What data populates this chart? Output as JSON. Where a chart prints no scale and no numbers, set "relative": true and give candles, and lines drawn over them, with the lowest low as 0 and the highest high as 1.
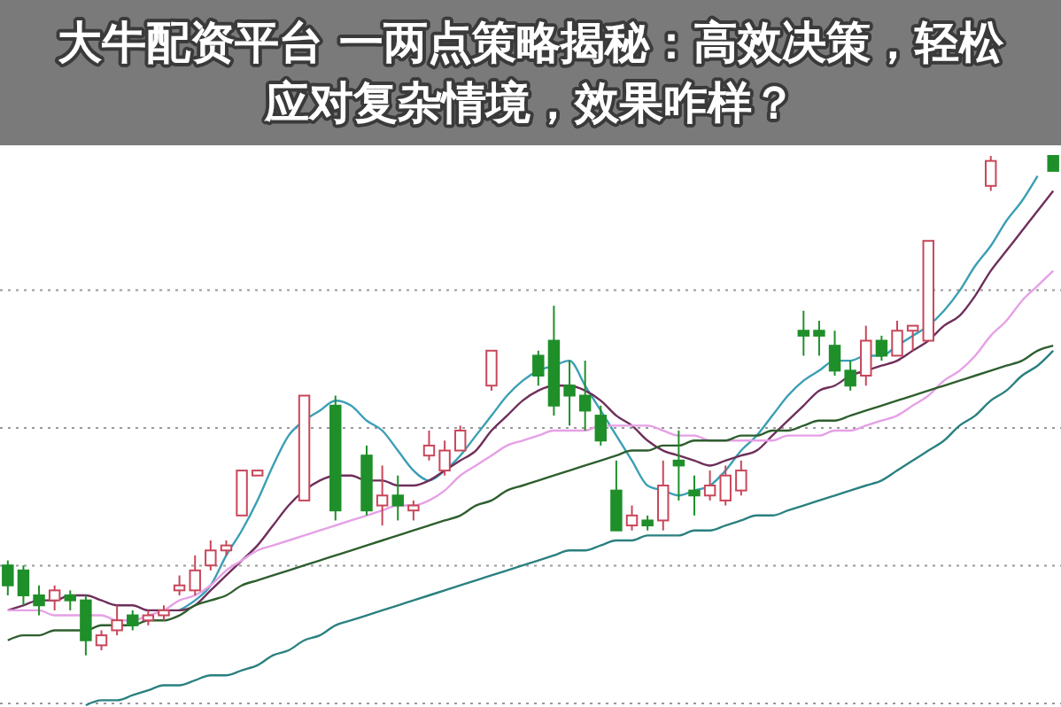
{
  "chart_data": {
    "type": "candlestick",
    "relative": true,
    "grid": true,
    "title": "大牛配资平台 一两点策略揭秘：高效决策，轻松应对复杂情境，效果咋样？",
    "categories": [
      null,
      null,
      null,
      null,
      null,
      null,
      null,
      null,
      null,
      null,
      null,
      null,
      null,
      null,
      null,
      null,
      null,
      null,
      null,
      null,
      null,
      null,
      null,
      null,
      null,
      null,
      null,
      null,
      null,
      null,
      null,
      null,
      null,
      null,
      null,
      null,
      null,
      null,
      null,
      null,
      null,
      null,
      null,
      null,
      null,
      null,
      null,
      null,
      null,
      null,
      null,
      null,
      null,
      null,
      null,
      null,
      null,
      null,
      null,
      null,
      null,
      null,
      null,
      null,
      null,
      null,
      null,
      null
    ],
    "ohlc": [
      [
        0.18,
        0.19,
        0.12,
        0.14
      ],
      [
        0.17,
        0.18,
        0.1,
        0.12
      ],
      [
        0.12,
        0.14,
        0.08,
        0.1
      ],
      [
        0.11,
        0.14,
        0.09,
        0.13
      ],
      [
        0.12,
        0.13,
        0.09,
        0.11
      ],
      [
        0.11,
        0.12,
        0,
        0.03
      ],
      [
        0.02,
        0.05,
        0.01,
        0.04
      ],
      [
        0.05,
        0.1,
        0.04,
        0.07
      ],
      [
        0.08,
        0.09,
        0.05,
        0.06
      ],
      [
        0.07,
        0.09,
        0.06,
        0.08
      ],
      [
        0.08,
        0.1,
        0.07,
        0.09
      ],
      [
        0.13,
        0.16,
        0.12,
        0.14
      ],
      [
        0.13,
        0.2,
        0.12,
        0.17
      ],
      [
        0.18,
        0.23,
        0.17,
        0.21
      ],
      [
        0.21,
        0.23,
        0.2,
        0.22
      ],
      [
        0.28,
        0.37,
        0.28,
        0.37
      ],
      [
        0.36,
        0.37,
        0.36,
        0.37
      ],
      null,
      null,
      [
        0.31,
        0.52,
        0.31,
        0.52
      ],
      null,
      [
        0.5,
        0.52,
        0.27,
        0.29
      ],
      null,
      [
        0.4,
        0.42,
        0.28,
        0.29
      ],
      [
        0.3,
        0.38,
        0.26,
        0.32
      ],
      [
        0.32,
        0.36,
        0.27,
        0.3
      ],
      [
        0.29,
        0.31,
        0.27,
        0.3
      ],
      [
        0.4,
        0.45,
        0.39,
        0.42
      ],
      [
        0.37,
        0.43,
        0.36,
        0.41
      ],
      [
        0.41,
        0.46,
        0.41,
        0.45
      ],
      null,
      [
        0.54,
        0.61,
        0.53,
        0.61
      ],
      null,
      null,
      [
        0.6,
        0.61,
        0.54,
        0.56
      ],
      [
        0.63,
        0.7,
        0.48,
        0.5
      ],
      [
        0.54,
        0.59,
        0.46,
        0.52
      ],
      [
        0.52,
        0.59,
        0.45,
        0.49
      ],
      [
        0.48,
        0.5,
        0.42,
        0.43
      ],
      [
        0.33,
        0.39,
        0.25,
        0.25
      ],
      [
        0.26,
        0.3,
        0.25,
        0.28
      ],
      [
        0.27,
        0.28,
        0.25,
        0.26
      ],
      [
        0.27,
        0.39,
        0.25,
        0.34
      ],
      [
        0.39,
        0.45,
        0.31,
        0.38
      ],
      [
        0.33,
        0.36,
        0.28,
        0.32
      ],
      [
        0.32,
        0.37,
        0.31,
        0.34
      ],
      [
        0.31,
        0.38,
        0.3,
        0.36
      ],
      [
        0.33,
        0.39,
        0.32,
        0.37
      ],
      null,
      null,
      null,
      [
        0.65,
        0.69,
        0.6,
        0.64
      ],
      [
        0.65,
        0.67,
        0.6,
        0.64
      ],
      [
        0.62,
        0.65,
        0.56,
        0.57
      ],
      [
        0.57,
        0.59,
        0.53,
        0.54
      ],
      [
        0.56,
        0.66,
        0.54,
        0.63
      ],
      [
        0.63,
        0.64,
        0.59,
        0.6
      ],
      [
        0.6,
        0.67,
        0.6,
        0.65
      ],
      [
        0.65,
        0.66,
        0.61,
        0.66
      ],
      [
        0.63,
        0.83,
        0.63,
        0.83
      ],
      null,
      null,
      null,
      [
        0.94,
        1.0,
        0.93,
        0.99
      ],
      null,
      null,
      null,
      [
        1.0,
        1.0,
        0.97,
        0.97
      ]
    ],
    "colors": [
      "#1f8f2a",
      "#1f8f2a",
      "#1f8f2a",
      "#c8475a",
      "#1f8f2a",
      "#1f8f2a",
      "#c8475a",
      "#c8475a",
      "#1f8f2a",
      "#c8475a",
      "#c8475a",
      "#c8475a",
      "#c8475a",
      "#c8475a",
      "#c8475a",
      "#c8475a",
      "#c8475a",
      null,
      null,
      "#c8475a",
      null,
      "#1f8f2a",
      null,
      "#1f8f2a",
      "#c8475a",
      "#1f8f2a",
      "#c8475a",
      "#c8475a",
      "#c8475a",
      "#c8475a",
      null,
      "#c8475a",
      null,
      null,
      "#1f8f2a",
      "#1f8f2a",
      "#1f8f2a",
      "#1f8f2a",
      "#1f8f2a",
      "#1f8f2a",
      "#c8475a",
      "#1f8f2a",
      "#c8475a",
      "#1f8f2a",
      "#1f8f2a",
      "#c8475a",
      "#c8475a",
      "#c8475a",
      null,
      null,
      null,
      "#1f8f2a",
      "#1f8f2a",
      "#1f8f2a",
      "#1f8f2a",
      "#c8475a",
      "#1f8f2a",
      "#c8475a",
      "#c8475a",
      "#c8475a",
      null,
      null,
      null,
      "#c8475a",
      null,
      null,
      null,
      "#1f8f2a"
    ],
    "series": [
      {
        "type": "line",
        "color": "#3a9fb5",
        "values": [
          null,
          null,
          null,
          null,
          null,
          null,
          null,
          null,
          null,
          null,
          null,
          0.09,
          0.11,
          0.14,
          0.2,
          0.25,
          0.31,
          0.38,
          0.44,
          0.47,
          0.49,
          0.51,
          0.5,
          0.47,
          0.45,
          0.41,
          0.37,
          0.35,
          0.37,
          0.4,
          0.44,
          0.48,
          0.52,
          0.55,
          0.57,
          0.58,
          0.59,
          0.54,
          0.49,
          0.44,
          0.39,
          0.34,
          0.33,
          0.32,
          0.33,
          0.34,
          0.37,
          0.41,
          0.44,
          0.48,
          0.52,
          0.55,
          0.57,
          0.59,
          0.59,
          0.6,
          0.6,
          0.62,
          0.64,
          0.66,
          0.69,
          0.73,
          0.78,
          0.82,
          0.87,
          0.91,
          0.96,
          null
        ]
      },
      {
        "type": "line",
        "color": "#6e2f5a",
        "values": [
          0.09,
          0.1,
          0.11,
          0.11,
          0.12,
          0.12,
          0.11,
          0.1,
          0.1,
          0.09,
          0.09,
          0.09,
          0.1,
          0.13,
          0.16,
          0.19,
          0.22,
          0.26,
          0.3,
          0.33,
          0.35,
          0.36,
          0.36,
          0.35,
          0.35,
          0.34,
          0.34,
          0.35,
          0.37,
          0.39,
          0.41,
          0.45,
          0.48,
          0.51,
          0.53,
          0.54,
          0.54,
          0.53,
          0.51,
          0.48,
          0.46,
          0.43,
          0.41,
          0.4,
          0.39,
          0.38,
          0.39,
          0.4,
          0.41,
          0.44,
          0.47,
          0.5,
          0.53,
          0.54,
          0.56,
          0.57,
          0.58,
          0.59,
          0.61,
          0.63,
          0.66,
          0.68,
          0.72,
          0.77,
          0.81,
          0.85,
          0.89,
          0.93
        ]
      },
      {
        "type": "line",
        "color": "#e6a0e6",
        "values": [
          0.09,
          0.09,
          0.09,
          0.08,
          0.08,
          0.08,
          0.08,
          0.07,
          0.07,
          0.08,
          0.09,
          0.11,
          0.12,
          0.14,
          0.17,
          0.19,
          0.21,
          0.22,
          0.23,
          0.24,
          0.25,
          0.26,
          0.27,
          0.28,
          0.29,
          0.3,
          0.3,
          0.31,
          0.33,
          0.36,
          0.38,
          0.4,
          0.42,
          0.43,
          0.44,
          0.45,
          0.45,
          0.45,
          0.46,
          0.46,
          0.46,
          0.46,
          0.45,
          0.44,
          0.44,
          0.43,
          0.43,
          0.43,
          0.43,
          0.43,
          0.44,
          0.44,
          0.44,
          0.45,
          0.45,
          0.46,
          0.47,
          0.48,
          0.5,
          0.52,
          0.55,
          0.57,
          0.6,
          0.64,
          0.67,
          0.71,
          0.74,
          0.77
        ]
      },
      {
        "type": "line",
        "color": "#2e5e2e",
        "values": [
          0.03,
          0.04,
          0.04,
          0.05,
          0.05,
          0.05,
          0.06,
          0.06,
          0.06,
          0.07,
          0.07,
          0.08,
          0.1,
          0.11,
          0.12,
          0.14,
          0.15,
          0.16,
          0.17,
          0.18,
          0.19,
          0.2,
          0.21,
          0.22,
          0.23,
          0.24,
          0.25,
          0.26,
          0.27,
          0.28,
          0.3,
          0.31,
          0.33,
          0.34,
          0.35,
          0.36,
          0.37,
          0.38,
          0.39,
          0.4,
          0.41,
          0.41,
          0.42,
          0.42,
          0.43,
          0.43,
          0.43,
          0.44,
          0.44,
          0.45,
          0.45,
          0.46,
          0.47,
          0.47,
          0.48,
          0.49,
          0.5,
          0.51,
          0.52,
          0.53,
          0.54,
          0.55,
          0.56,
          0.57,
          0.58,
          0.59,
          0.61,
          0.62
        ]
      },
      {
        "type": "line",
        "color": "#2a8080",
        "values": [
          null,
          null,
          null,
          null,
          null,
          -0.1,
          -0.09,
          -0.09,
          -0.08,
          -0.07,
          -0.06,
          -0.06,
          -0.05,
          -0.04,
          -0.04,
          -0.03,
          -0.02,
          0.0,
          0.01,
          0.03,
          0.04,
          0.06,
          0.07,
          0.08,
          0.09,
          0.1,
          0.11,
          0.12,
          0.13,
          0.14,
          0.15,
          0.16,
          0.17,
          0.18,
          0.19,
          0.2,
          0.21,
          0.21,
          0.22,
          0.23,
          0.23,
          0.24,
          0.24,
          0.24,
          0.25,
          0.25,
          0.26,
          0.27,
          0.28,
          0.28,
          0.29,
          0.3,
          0.31,
          0.32,
          0.33,
          0.34,
          0.35,
          0.37,
          0.39,
          0.41,
          0.43,
          0.46,
          0.48,
          0.51,
          0.53,
          0.56,
          0.58,
          0.61
        ]
      }
    ]
  }
}
